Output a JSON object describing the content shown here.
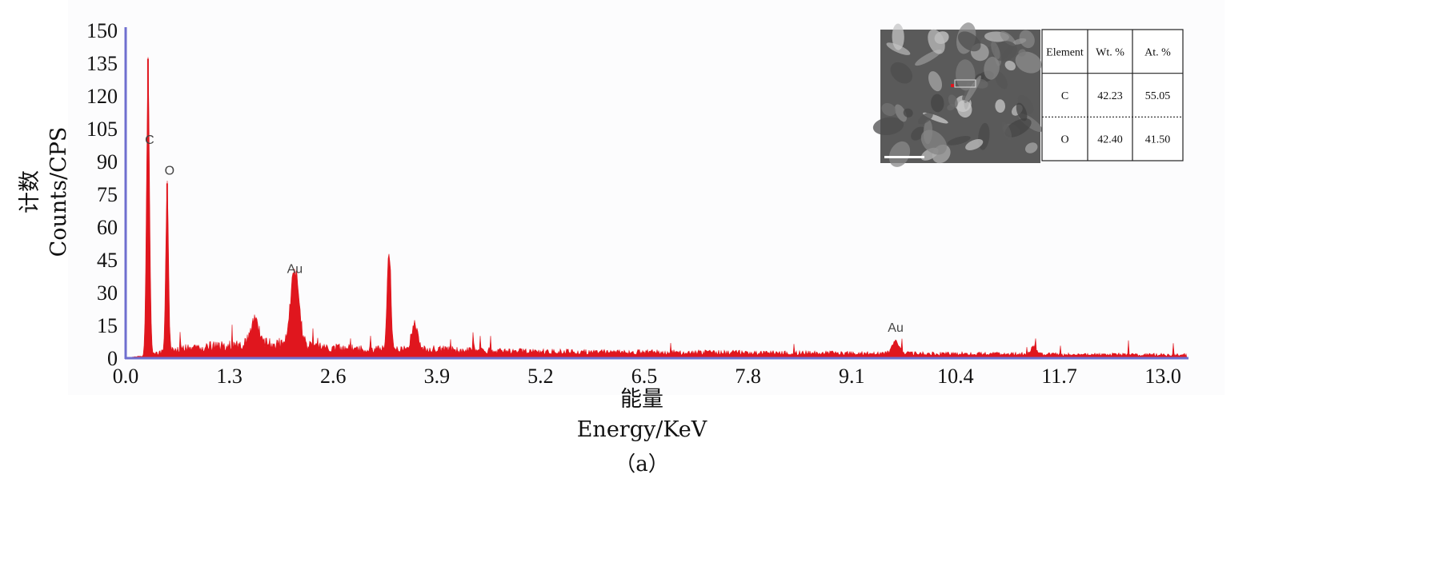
{
  "chart_data": {
    "type": "bar",
    "title": "",
    "xlabel": "能量",
    "xlabel_en": "Energy/KeV",
    "ylabel": "计数",
    "ylabel_en": "Counts/CPS",
    "xlim": [
      0,
      13.3
    ],
    "ylim": [
      0,
      150
    ],
    "x_ticks": [
      "0.0",
      "1.3",
      "2.6",
      "3.9",
      "5.2",
      "6.5",
      "7.8",
      "9.1",
      "10.4",
      "11.7",
      "13.0"
    ],
    "y_ticks": [
      "0",
      "15",
      "30",
      "45",
      "60",
      "75",
      "90",
      "105",
      "120",
      "135",
      "150"
    ],
    "grid": false,
    "series_color": "#e0161e",
    "axis_color": "#6f6fcf",
    "background_color": "#fcfcfd",
    "peaks": [
      {
        "x": 0.28,
        "y": 137,
        "width": 0.04
      },
      {
        "x": 0.52,
        "y": 80,
        "width": 0.035
      },
      {
        "x": 2.12,
        "y": 36,
        "width": 0.11
      },
      {
        "x": 3.3,
        "y": 45,
        "width": 0.05
      },
      {
        "x": 3.62,
        "y": 12,
        "width": 0.08
      },
      {
        "x": 1.62,
        "y": 12,
        "width": 0.1
      },
      {
        "x": 9.65,
        "y": 6,
        "width": 0.09
      },
      {
        "x": 11.38,
        "y": 4,
        "width": 0.07
      }
    ],
    "background_level": [
      {
        "x": 0.0,
        "y": 0
      },
      {
        "x": 0.22,
        "y": 1
      },
      {
        "x": 0.6,
        "y": 4
      },
      {
        "x": 1.3,
        "y": 6
      },
      {
        "x": 1.8,
        "y": 7
      },
      {
        "x": 2.5,
        "y": 5
      },
      {
        "x": 3.0,
        "y": 4
      },
      {
        "x": 3.9,
        "y": 4
      },
      {
        "x": 5.2,
        "y": 3
      },
      {
        "x": 7.8,
        "y": 2.5
      },
      {
        "x": 10.4,
        "y": 2
      },
      {
        "x": 13.3,
        "y": 1.5
      }
    ],
    "peak_labels": [
      {
        "text": "C",
        "x": 0.3,
        "y": 98
      },
      {
        "text": "O",
        "x": 0.55,
        "y": 84
      },
      {
        "text": "Au",
        "x": 2.12,
        "y": 39
      },
      {
        "text": "Au",
        "x": 9.65,
        "y": 12
      }
    ],
    "inset_table": {
      "headers": [
        "Element",
        "Wt. %",
        "At. %"
      ],
      "rows": [
        [
          "C",
          "42.23",
          "55.05"
        ],
        [
          "O",
          "42.40",
          "41.50"
        ]
      ]
    }
  },
  "caption": "（a）"
}
